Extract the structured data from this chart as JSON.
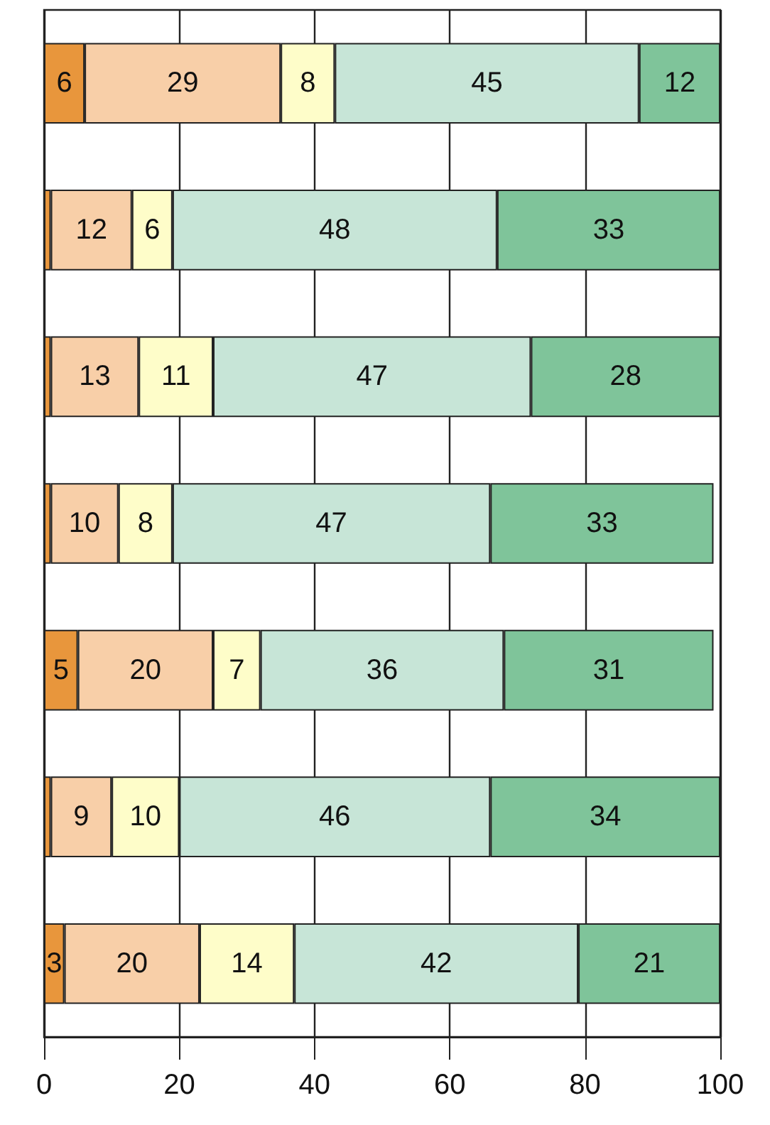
{
  "chart_data": {
    "type": "bar",
    "orientation": "horizontal",
    "stacked": true,
    "categories": [
      null,
      null,
      null,
      null,
      null,
      null,
      null
    ],
    "series": [
      {
        "color": "#e8963c",
        "values": [
          6,
          1,
          1,
          1,
          5,
          1,
          3
        ],
        "value_labels": [
          "6",
          null,
          null,
          null,
          "5",
          null,
          "3"
        ]
      },
      {
        "color": "#f8cfa8",
        "values": [
          29,
          12,
          13,
          10,
          20,
          9,
          20
        ],
        "value_labels": [
          "29",
          "12",
          "13",
          "10",
          "20",
          "9",
          "20"
        ]
      },
      {
        "color": "#fefdc9",
        "values": [
          8,
          6,
          11,
          8,
          7,
          10,
          14
        ],
        "value_labels": [
          "8",
          "6",
          "11",
          "8",
          "7",
          "10",
          "14"
        ]
      },
      {
        "color": "#c7e5d7",
        "values": [
          45,
          48,
          47,
          47,
          36,
          46,
          42
        ],
        "value_labels": [
          "45",
          "48",
          "47",
          "47",
          "36",
          "46",
          "42"
        ]
      },
      {
        "color": "#7fc49a",
        "values": [
          12,
          33,
          28,
          33,
          31,
          34,
          21
        ],
        "value_labels": [
          "12",
          "33",
          "28",
          "33",
          "31",
          "34",
          "21"
        ]
      }
    ],
    "xlim": [
      0,
      100
    ],
    "xticks": [
      0,
      20,
      40,
      60,
      80,
      100
    ],
    "grid": "x"
  }
}
